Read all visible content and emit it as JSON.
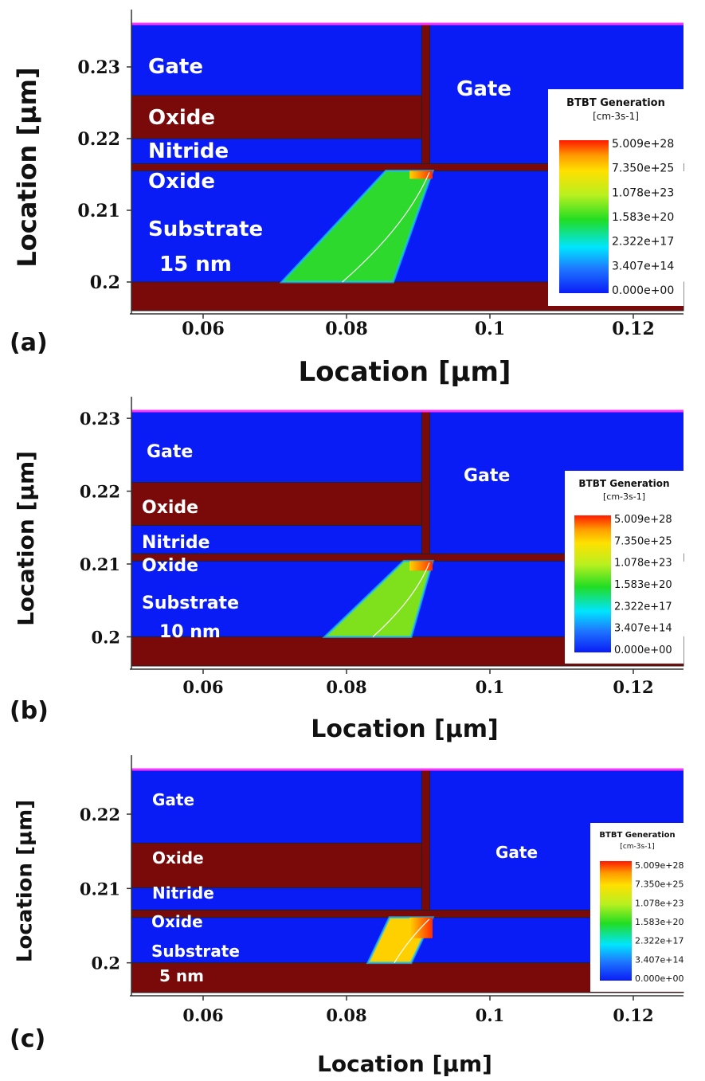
{
  "colors": {
    "gate": "#0a1cf5",
    "oxide": "#7a0a0a",
    "contact_line": "#ff33ff"
  },
  "chart_data": [
    {
      "type": "heatmap",
      "panel_label": "(a)",
      "xlabel": "Location [µm]",
      "ylabel": "Location [µm]",
      "xlim": [
        0.05,
        0.127
      ],
      "ylim": [
        0.196,
        0.236
      ],
      "x_ticks": [
        "0.06",
        "0.08",
        "0.1",
        "0.12"
      ],
      "y_ticks": [
        "0.2",
        "0.21",
        "0.22",
        "0.23"
      ],
      "region_labels": [
        "Gate",
        "Oxide",
        "Nitride",
        "Oxide",
        "Substrate",
        "15 nm",
        "Gate"
      ],
      "legend_title": [
        "BTBT Generation",
        "[cm-3s-1]"
      ],
      "legend_labels": [
        "5.009e+28",
        "7.350e+25",
        "1.078e+23",
        "1.583e+20",
        "2.322e+17",
        "3.407e+14",
        "0.000e+00"
      ]
    },
    {
      "type": "heatmap",
      "panel_label": "(b)",
      "xlabel": "Location [µm]",
      "ylabel": "Location [µm]",
      "xlim": [
        0.05,
        0.127
      ],
      "ylim": [
        0.196,
        0.231
      ],
      "x_ticks": [
        "0.06",
        "0.08",
        "0.1",
        "0.12"
      ],
      "y_ticks": [
        "0.2",
        "0.21",
        "0.22",
        "0.23"
      ],
      "region_labels": [
        "Gate",
        "Oxide",
        "Nitride",
        "Oxide",
        "Substrate",
        "10 nm",
        "Gate"
      ],
      "legend_title": [
        "BTBT Generation",
        "[cm-3s-1]"
      ],
      "legend_labels": [
        "5.009e+28",
        "7.350e+25",
        "1.078e+23",
        "1.583e+20",
        "2.322e+17",
        "3.407e+14",
        "0.000e+00"
      ]
    },
    {
      "type": "heatmap",
      "panel_label": "(c)",
      "xlabel": "Location [µm]",
      "ylabel": "Location [µm]",
      "xlim": [
        0.05,
        0.127
      ],
      "ylim": [
        0.196,
        0.226
      ],
      "x_ticks": [
        "0.06",
        "0.08",
        "0.1",
        "0.12"
      ],
      "y_ticks": [
        "0.2",
        "0.21",
        "0.22"
      ],
      "region_labels": [
        "Gate",
        "Oxide",
        "Nitride",
        "Oxide",
        "Substrate",
        "5 nm",
        "Gate"
      ],
      "legend_title": [
        "BTBT Generation",
        "[cm-3s-1]"
      ],
      "legend_labels": [
        "5.009e+28",
        "7.350e+25",
        "1.078e+23",
        "1.583e+20",
        "2.322e+17",
        "3.407e+14",
        "0.000e+00"
      ]
    }
  ]
}
